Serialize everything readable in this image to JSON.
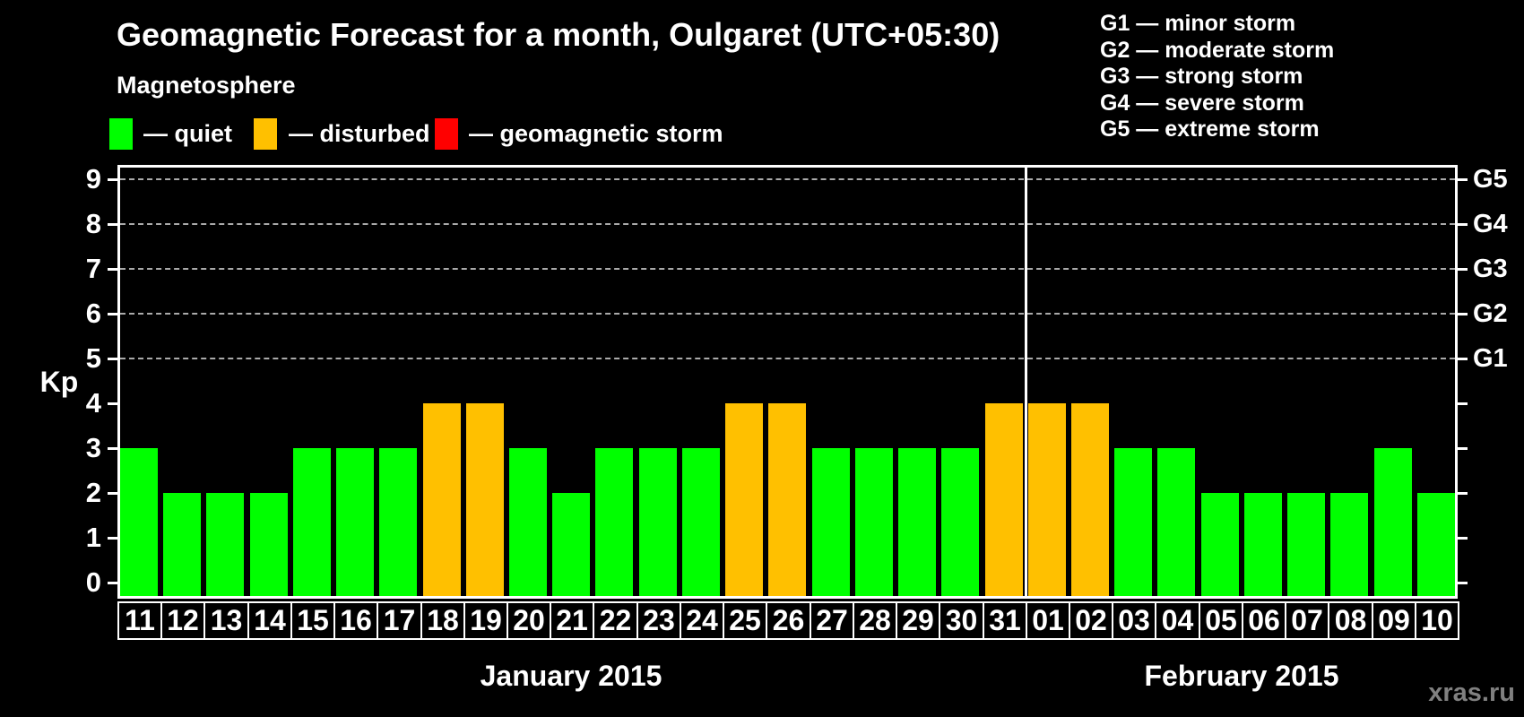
{
  "title": "Geomagnetic Forecast for a month, Oulgaret (UTC+05:30)",
  "legend": {
    "heading": "Magnetosphere",
    "items": [
      {
        "key": "quiet",
        "label": "— quiet",
        "color": "#00ff00"
      },
      {
        "key": "disturbed",
        "label": "— disturbed",
        "color": "#ffc000"
      },
      {
        "key": "storm",
        "label": "— geomagnetic storm",
        "color": "#ff0000"
      }
    ]
  },
  "storm_legend": {
    "lines": [
      "G1 — minor storm",
      "G2 — moderate storm",
      "G3 — strong storm",
      "G4 — severe storm",
      "G5 — extreme storm"
    ]
  },
  "watermark": "xras.ru",
  "chart_data": {
    "type": "bar",
    "title": "Geomagnetic Forecast for a month, Oulgaret (UTC+05:30)",
    "ylabel": "Kp",
    "ylim": [
      0,
      9
    ],
    "y_ticks": [
      0,
      1,
      2,
      3,
      4,
      5,
      6,
      7,
      8,
      9
    ],
    "gridlines_at": [
      5,
      6,
      7,
      8,
      9
    ],
    "grid_style": "dashed",
    "legend_position": "top",
    "right_axis_labels": [
      {
        "value": 5,
        "label": "G1"
      },
      {
        "value": 6,
        "label": "G2"
      },
      {
        "value": 7,
        "label": "G3"
      },
      {
        "value": 8,
        "label": "G4"
      },
      {
        "value": 9,
        "label": "G5"
      }
    ],
    "categories": [
      "11",
      "12",
      "13",
      "14",
      "15",
      "16",
      "17",
      "18",
      "19",
      "20",
      "21",
      "22",
      "23",
      "24",
      "25",
      "26",
      "27",
      "28",
      "29",
      "30",
      "31",
      "01",
      "02",
      "03",
      "04",
      "05",
      "06",
      "07",
      "08",
      "09",
      "10"
    ],
    "values": [
      3,
      2,
      2,
      2,
      3,
      3,
      3,
      4,
      4,
      3,
      2,
      3,
      3,
      3,
      4,
      4,
      3,
      3,
      3,
      3,
      4,
      4,
      4,
      3,
      3,
      2,
      2,
      2,
      2,
      3,
      2
    ],
    "states": [
      "quiet",
      "quiet",
      "quiet",
      "quiet",
      "quiet",
      "quiet",
      "quiet",
      "disturbed",
      "disturbed",
      "quiet",
      "quiet",
      "quiet",
      "quiet",
      "quiet",
      "disturbed",
      "disturbed",
      "quiet",
      "quiet",
      "quiet",
      "quiet",
      "disturbed",
      "disturbed",
      "disturbed",
      "quiet",
      "quiet",
      "quiet",
      "quiet",
      "quiet",
      "quiet",
      "quiet",
      "quiet"
    ],
    "state_colors": {
      "quiet": "#00ff00",
      "disturbed": "#ffc000",
      "storm": "#ff0000"
    },
    "months": [
      {
        "label": "January 2015",
        "days": 21
      },
      {
        "label": "February 2015",
        "days": 10
      }
    ]
  }
}
